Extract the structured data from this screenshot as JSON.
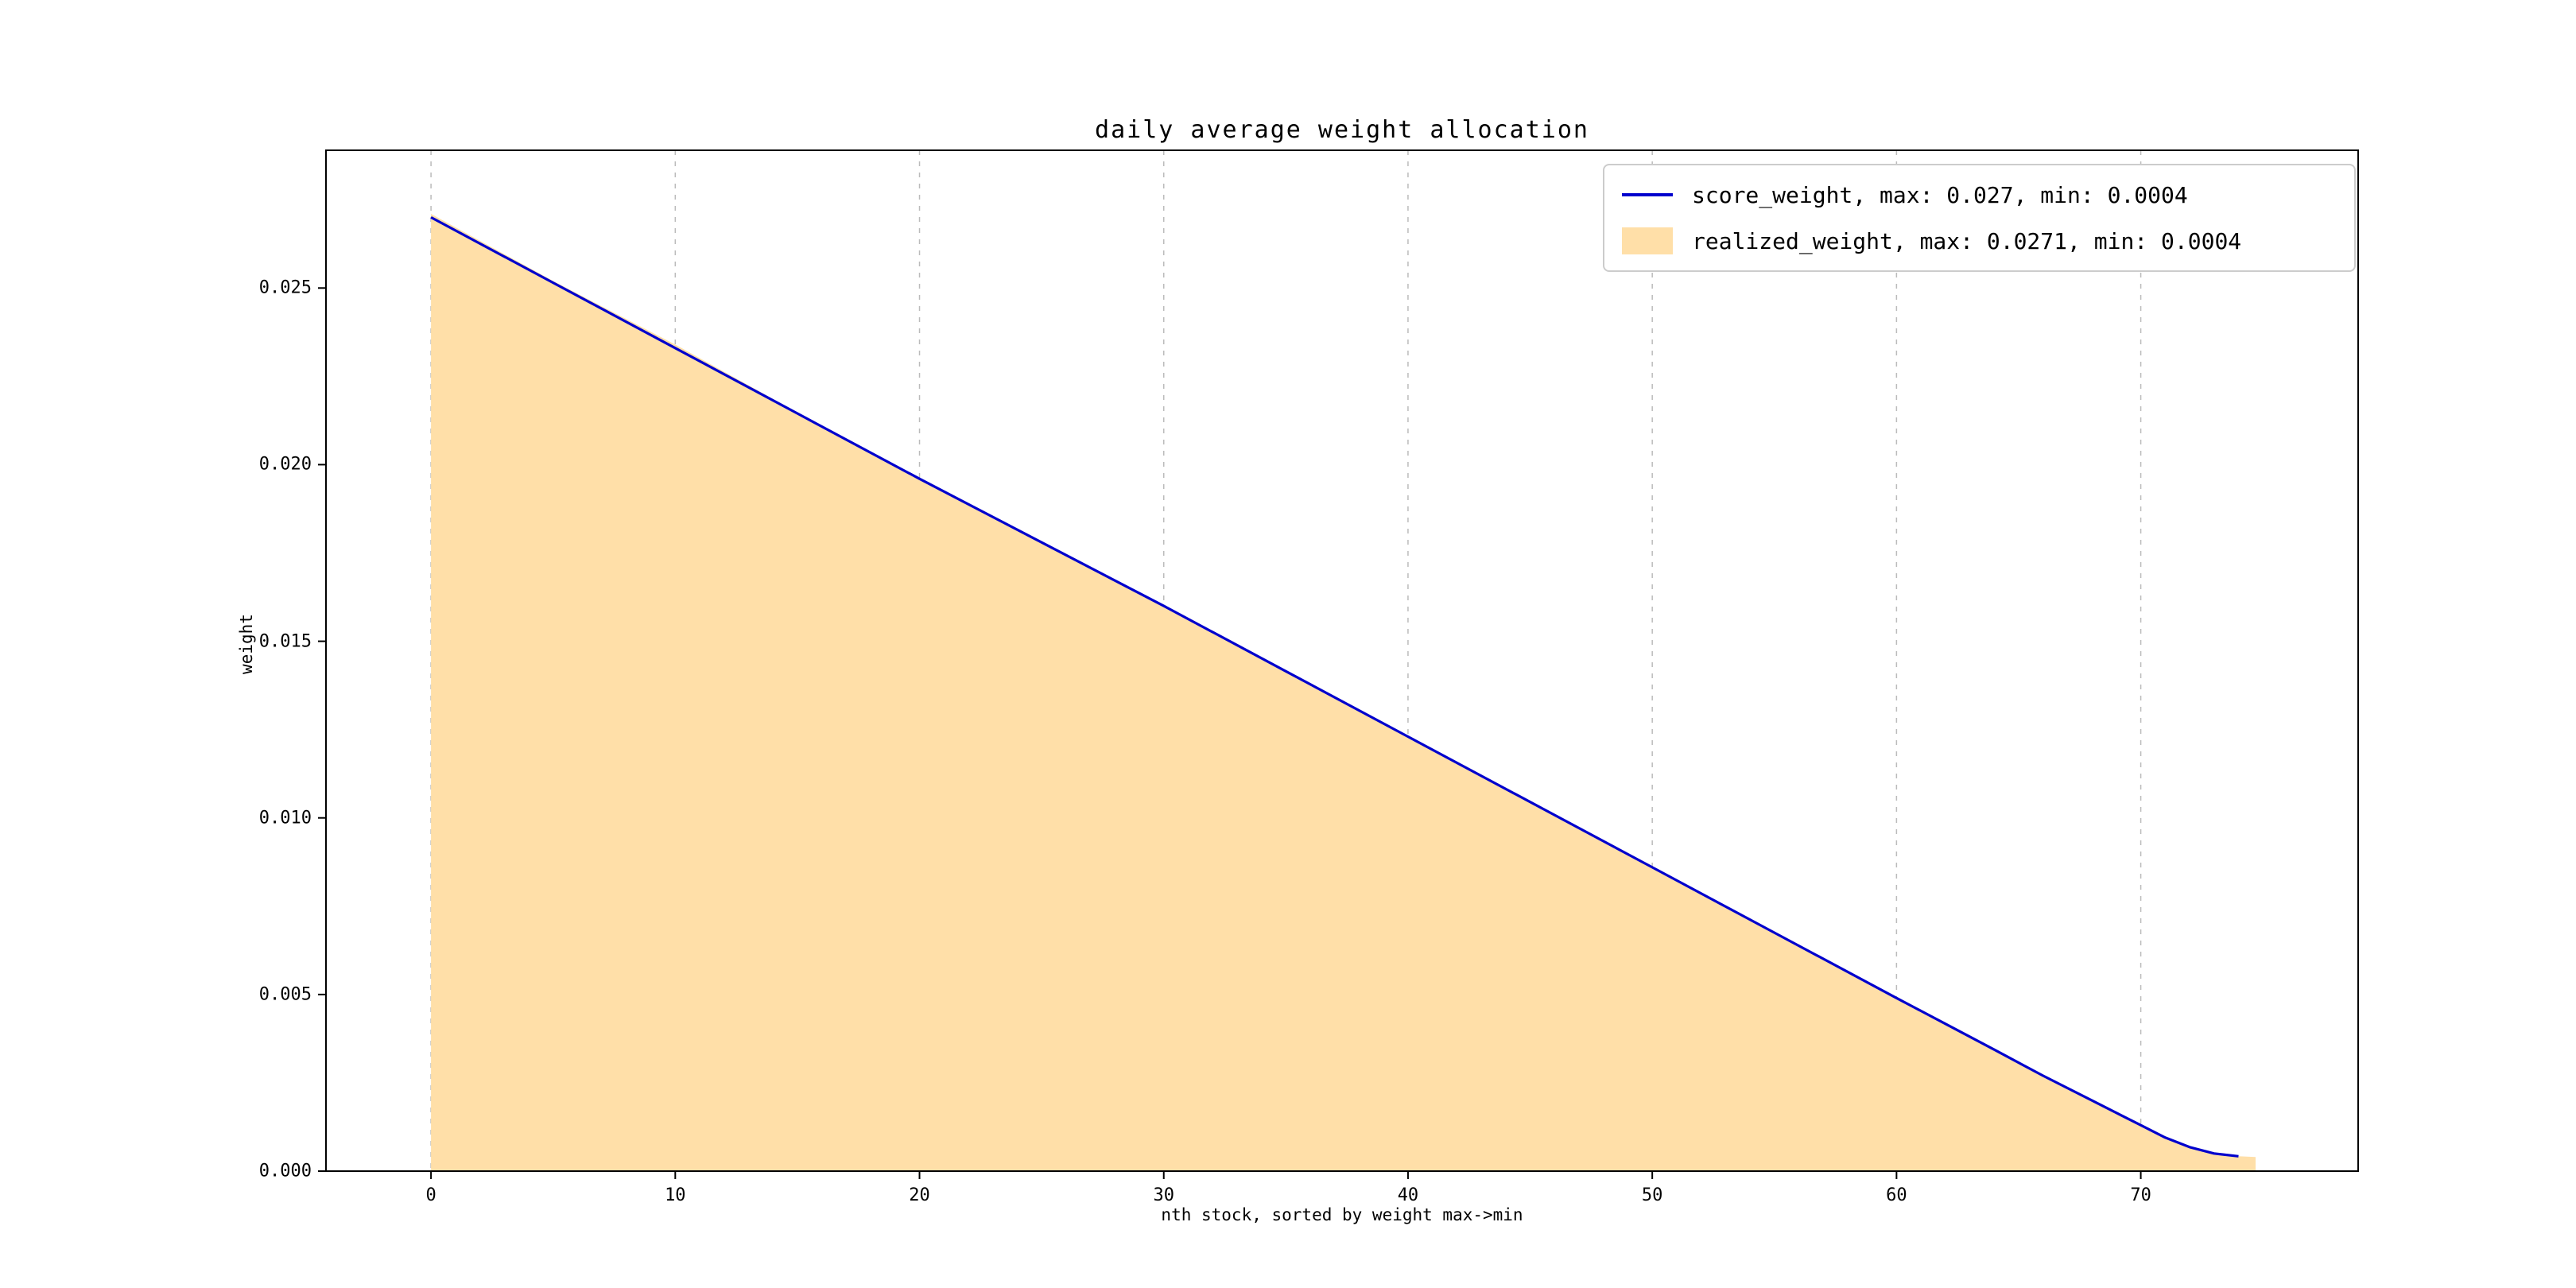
{
  "page": {
    "background": "#ffffff"
  },
  "chart_data": {
    "type": "area",
    "title": "daily average weight allocation",
    "xlabel": "nth stock, sorted by weight max->min",
    "ylabel": "weight",
    "xlim": [
      -4.3,
      78.9
    ],
    "ylim": [
      0,
      0.0289
    ],
    "x_ticks": [
      0,
      10,
      20,
      30,
      40,
      50,
      60,
      70
    ],
    "x_tick_labels": [
      "0",
      "10",
      "20",
      "30",
      "40",
      "50",
      "60",
      "70"
    ],
    "y_ticks": [
      0.0,
      0.005,
      0.01,
      0.015,
      0.02,
      0.025
    ],
    "y_tick_labels": [
      "0.000",
      "0.005",
      "0.010",
      "0.015",
      "0.020",
      "0.025"
    ],
    "grid": "vertical-dashed",
    "grid_color": "#bbbbbb",
    "frame_color": "#000000",
    "legend_position": "upper-right",
    "series": [
      {
        "name": "score_weight, max: 0.027, min: 0.0004",
        "type": "line",
        "color": "#0000cd",
        "points": [
          [
            0,
            0.027
          ],
          [
            5,
            0.02515
          ],
          [
            10,
            0.0233
          ],
          [
            15,
            0.02145
          ],
          [
            20,
            0.0196
          ],
          [
            25,
            0.0178
          ],
          [
            30,
            0.016
          ],
          [
            35,
            0.01415
          ],
          [
            40,
            0.0123
          ],
          [
            45,
            0.01045
          ],
          [
            50,
            0.0086
          ],
          [
            55,
            0.00675
          ],
          [
            60,
            0.0049
          ],
          [
            62,
            0.00417
          ],
          [
            64,
            0.00344
          ],
          [
            66,
            0.0027
          ],
          [
            68,
            0.002
          ],
          [
            69,
            0.00165
          ],
          [
            70,
            0.0013
          ],
          [
            71,
            0.00095
          ],
          [
            72,
            0.00068
          ],
          [
            73,
            0.0005
          ],
          [
            74,
            0.00042
          ]
        ]
      },
      {
        "name": "realized_weight, max: 0.0271, min: 0.0004",
        "type": "area",
        "color": "#ffdfa8",
        "points": [
          [
            0,
            0.0271
          ],
          [
            5,
            0.0252
          ],
          [
            10,
            0.0234
          ],
          [
            15,
            0.02148
          ],
          [
            20,
            0.0196
          ],
          [
            25,
            0.0178
          ],
          [
            30,
            0.016
          ],
          [
            35,
            0.01415
          ],
          [
            40,
            0.0123
          ],
          [
            45,
            0.01045
          ],
          [
            50,
            0.0086
          ],
          [
            55,
            0.00675
          ],
          [
            60,
            0.0049
          ],
          [
            62,
            0.00417
          ],
          [
            64,
            0.00344
          ],
          [
            66,
            0.0027
          ],
          [
            68,
            0.002
          ],
          [
            69,
            0.00165
          ],
          [
            70,
            0.0013
          ],
          [
            71,
            0.00095
          ],
          [
            72,
            0.00068
          ],
          [
            73,
            0.0005
          ],
          [
            74,
            0.00042
          ],
          [
            74.7,
            0.0004
          ]
        ]
      }
    ]
  }
}
